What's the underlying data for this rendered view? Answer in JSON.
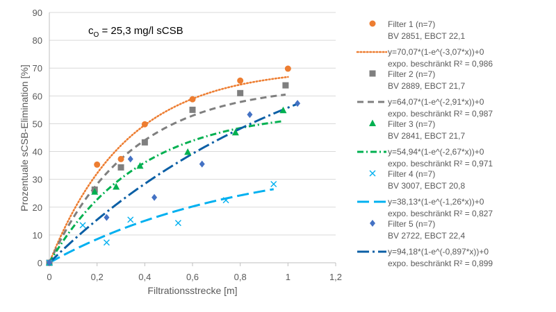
{
  "chart_data": {
    "type": "scatter",
    "annotation": {
      "prefix": "c",
      "sub": "O",
      "suffix": " = 25,3 mg/l sCSB"
    },
    "xlabel": "Filtrationsstrecke [m]",
    "ylabel": "Prozentuale sCSB-Elimination [%]",
    "xlim": [
      0,
      1.2
    ],
    "ylim": [
      0,
      90
    ],
    "x_ticks": [
      "0",
      "0,2",
      "0,4",
      "0,6",
      "0,8",
      "1",
      "1,2"
    ],
    "y_ticks": [
      "0",
      "10",
      "20",
      "30",
      "40",
      "50",
      "60",
      "70",
      "80",
      "90"
    ],
    "grid": "horizontal",
    "legend_position": "right",
    "series": [
      {
        "name": "Filter 1 (n=7)",
        "detail": "BV 2851, EBCT 22,1",
        "marker": "circle",
        "color": "#ED7D31",
        "points": [
          [
            0,
            0
          ],
          [
            0.2,
            35.3
          ],
          [
            0.3,
            37.3
          ],
          [
            0.4,
            49.8
          ],
          [
            0.6,
            58.8
          ],
          [
            0.8,
            65.5
          ],
          [
            1.0,
            69.8
          ]
        ],
        "trend": {
          "a": 70.07,
          "k": 3.07,
          "dash": "dotted",
          "equation": "y=70,07*(1-e^(-3,07*x))+0",
          "r2": "expo. beschränkt R² = 0,986"
        }
      },
      {
        "name": "Filter 2 (n=7)",
        "detail": "BV 2889, EBCT 21,7",
        "marker": "square",
        "color": "#7F7F7F",
        "points": [
          [
            0,
            0
          ],
          [
            0.19,
            26.3
          ],
          [
            0.3,
            34.3
          ],
          [
            0.4,
            43.3
          ],
          [
            0.6,
            55.0
          ],
          [
            0.8,
            61.0
          ],
          [
            0.99,
            63.8
          ]
        ],
        "trend": {
          "a": 64.07,
          "k": 2.91,
          "dash": "dash",
          "equation": "y=64,07*(1-e^(-2,91*x))+0",
          "r2": "expo. beschränkt R² = 0,987"
        }
      },
      {
        "name": "Filter 3 (n=7)",
        "detail": "BV 2841, EBCT 21,7",
        "marker": "triangle",
        "color": "#00B050",
        "points": [
          [
            0,
            0
          ],
          [
            0.19,
            25.5
          ],
          [
            0.28,
            27.3
          ],
          [
            0.38,
            34.8
          ],
          [
            0.58,
            39.8
          ],
          [
            0.78,
            46.8
          ],
          [
            0.98,
            54.8
          ]
        ],
        "trend": {
          "a": 54.94,
          "k": 2.67,
          "dash": "dashdot",
          "equation": "y=54,94*(1-e^(-2,67*x))+0",
          "r2": "expo. beschränkt R² = 0,971"
        }
      },
      {
        "name": "Filter 4 (n=7)",
        "detail": "BV 3007, EBCT 20,8",
        "marker": "x",
        "color": "#00B0F0",
        "points": [
          [
            0,
            0
          ],
          [
            0.14,
            13.5
          ],
          [
            0.24,
            7.3
          ],
          [
            0.34,
            15.5
          ],
          [
            0.54,
            14.3
          ],
          [
            0.74,
            22.5
          ],
          [
            0.94,
            28.3
          ]
        ],
        "trend": {
          "a": 38.13,
          "k": 1.26,
          "dash": "longdash",
          "equation": "y=38,13*(1-e^(-1,26*x))+0",
          "r2": "expo. beschränkt R² = 0,827"
        }
      },
      {
        "name": "Filter 5 (n=7)",
        "detail": "BV 2722, EBCT 22,4",
        "marker": "diamond",
        "color": "#4472C4",
        "points": [
          [
            0,
            0
          ],
          [
            0.24,
            16.3
          ],
          [
            0.34,
            37.3
          ],
          [
            0.44,
            23.5
          ],
          [
            0.64,
            35.5
          ],
          [
            0.84,
            53.3
          ],
          [
            1.04,
            57.3
          ]
        ],
        "trend": {
          "a": 94.18,
          "k": 0.897,
          "dash": "longdashdot",
          "lineColor": "#0B5FA5",
          "equation": "y=94,18*(1-e^(-0,897*x))+0",
          "r2": "expo. beschränkt R² = 0,899"
        }
      }
    ]
  }
}
